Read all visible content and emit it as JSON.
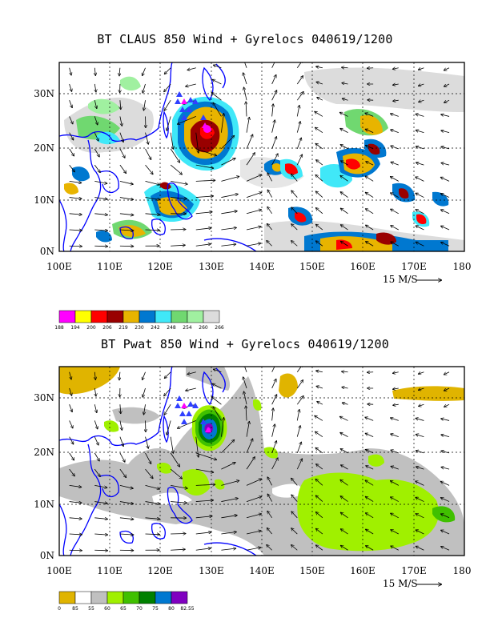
{
  "panels": [
    {
      "id": "claus",
      "title": "BT CLAUS 850 Wind + Gyrelocs 040619/1200",
      "lon_ticks": [
        "100E",
        "110E",
        "120E",
        "130E",
        "140E",
        "150E",
        "160E",
        "170E",
        "180"
      ],
      "lat_ticks": [
        "0N",
        "10N",
        "20N",
        "30N"
      ],
      "scale_label": "15 M/S",
      "legend": {
        "labels": [
          "188",
          "194",
          "200",
          "206",
          "219",
          "230",
          "242",
          "248",
          "254",
          "260",
          "266"
        ],
        "colors": [
          "#ff00ff",
          "#ffff00",
          "#ff0000",
          "#990000",
          "#e8b400",
          "#0078d0",
          "#40e8f8",
          "#70d870",
          "#a0f0a0",
          "#dcdcdc"
        ]
      }
    },
    {
      "id": "pwat",
      "title": "BT Pwat 850 Wind + Gyrelocs 040619/1200",
      "lon_ticks": [
        "100E",
        "110E",
        "120E",
        "130E",
        "140E",
        "150E",
        "160E",
        "170E",
        "180"
      ],
      "lat_ticks": [
        "0N",
        "10N",
        "20N",
        "30N"
      ],
      "scale_label": "15 M/S",
      "legend": {
        "labels": [
          "0",
          "85",
          "55",
          "60",
          "65",
          "70",
          "75",
          "80",
          "82.55"
        ],
        "colors": [
          "#e0b400",
          "#ffffff",
          "#c0c0c0",
          "#a0f000",
          "#40c000",
          "#008000",
          "#0078d0",
          "#8000c0"
        ]
      }
    }
  ],
  "colors": {
    "coast": "#0000ff",
    "gyreloc": "#3040ff",
    "gyreloc_main": "#ff00ff",
    "grid": "#000000"
  },
  "map": {
    "lon_range": [
      100,
      180
    ],
    "lat_range": [
      0,
      35
    ]
  }
}
